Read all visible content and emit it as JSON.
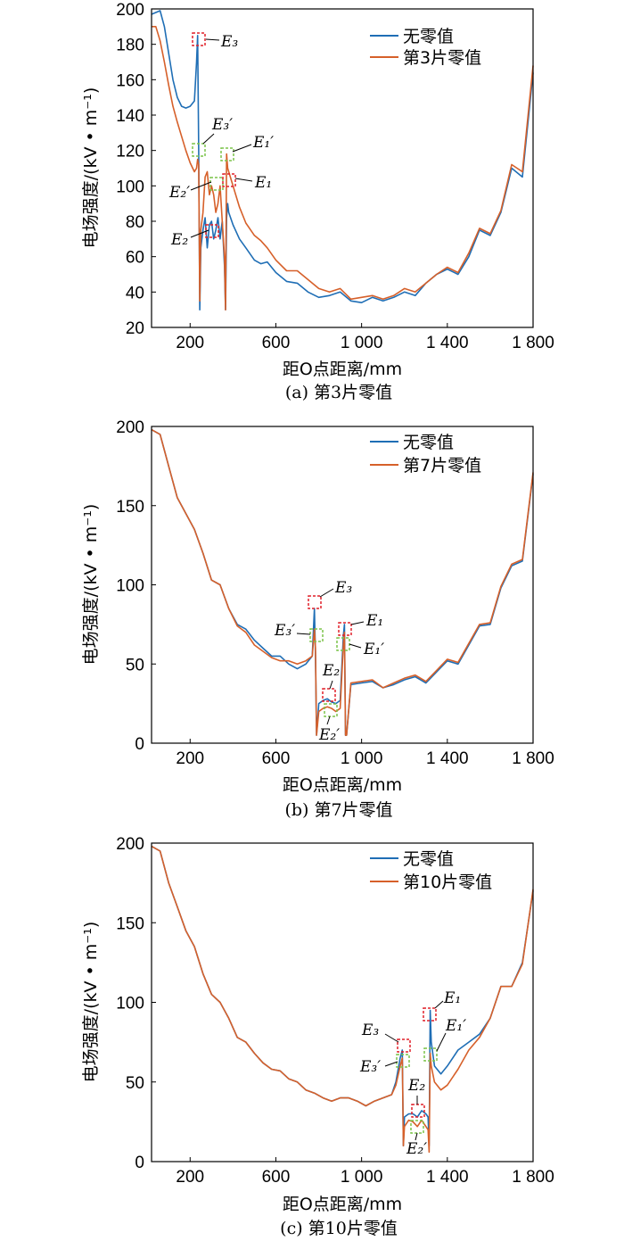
{
  "colors": {
    "no_zero": "#1f6eb5",
    "zero": "#d6602a",
    "box_red": "#e0202a",
    "box_green": "#7cc44a"
  },
  "chart_data": [
    {
      "type": "line",
      "caption": "(a)  第3片零值",
      "xlabel": "距O点距离/mm",
      "ylabel": "电场强度/(kV • m⁻¹)",
      "xlim": [
        20,
        1800
      ],
      "ylim": [
        20,
        200
      ],
      "xticks": [
        200,
        600,
        1000,
        1400,
        1800
      ],
      "xtick_labels": [
        "200",
        "600",
        "1 000",
        "1 400",
        "1 800"
      ],
      "yticks": [
        20,
        40,
        60,
        80,
        100,
        120,
        140,
        160,
        180,
        200
      ],
      "ytick_labels": [
        "20",
        "40",
        "60",
        "80",
        "100",
        "120",
        "140",
        "160",
        "180",
        "200"
      ],
      "legend": [
        "无零值",
        "第3片零值"
      ],
      "legend_position": "top-right",
      "series": [
        {
          "name": "无零值",
          "x": [
            20,
            60,
            80,
            100,
            120,
            140,
            160,
            180,
            200,
            220,
            230,
            235,
            240,
            245,
            250,
            260,
            270,
            280,
            290,
            300,
            310,
            320,
            330,
            340,
            350,
            360,
            365,
            370,
            375,
            380,
            400,
            430,
            460,
            500,
            530,
            560,
            600,
            650,
            700,
            750,
            800,
            850,
            900,
            950,
            1000,
            1050,
            1100,
            1150,
            1200,
            1250,
            1300,
            1350,
            1400,
            1450,
            1500,
            1550,
            1600,
            1650,
            1700,
            1750,
            1800
          ],
          "y": [
            197,
            199,
            190,
            175,
            160,
            150,
            145,
            144,
            145,
            148,
            170,
            185,
            120,
            30,
            65,
            75,
            82,
            65,
            78,
            80,
            70,
            75,
            82,
            70,
            80,
            55,
            30,
            82,
            90,
            85,
            78,
            70,
            65,
            58,
            56,
            57,
            51,
            46,
            45,
            40,
            37,
            38,
            40,
            35,
            34,
            37,
            35,
            37,
            40,
            38,
            45,
            50,
            53,
            50,
            60,
            75,
            72,
            85,
            110,
            105,
            164
          ]
        },
        {
          "name": "第3片零值",
          "x": [
            20,
            40,
            60,
            80,
            100,
            120,
            140,
            160,
            180,
            200,
            220,
            230,
            235,
            240,
            245,
            250,
            260,
            270,
            280,
            290,
            300,
            310,
            320,
            330,
            340,
            350,
            360,
            365,
            370,
            375,
            380,
            400,
            430,
            460,
            500,
            530,
            560,
            600,
            650,
            700,
            750,
            800,
            850,
            900,
            950,
            1000,
            1050,
            1100,
            1150,
            1200,
            1250,
            1300,
            1350,
            1400,
            1450,
            1500,
            1550,
            1600,
            1650,
            1700,
            1750,
            1800
          ],
          "y": [
            190,
            190,
            182,
            170,
            157,
            145,
            136,
            128,
            120,
            113,
            108,
            110,
            115,
            112,
            35,
            75,
            85,
            105,
            108,
            95,
            100,
            95,
            85,
            90,
            100,
            80,
            60,
            30,
            118,
            110,
            108,
            100,
            88,
            79,
            72,
            69,
            65,
            58,
            52,
            52,
            47,
            42,
            40,
            42,
            36,
            37,
            38,
            36,
            38,
            42,
            40,
            45,
            50,
            54,
            51,
            62,
            76,
            73,
            86,
            112,
            108,
            168
          ]
        }
      ],
      "annotations": [
        "E₃",
        "E₃′",
        "E₁′",
        "E₂′",
        "E₁",
        "E₂"
      ]
    },
    {
      "type": "line",
      "caption": "(b)  第7片零值",
      "xlabel": "距O点距离/mm",
      "ylabel": "电场强度/(kV • m⁻¹)",
      "xlim": [
        20,
        1800
      ],
      "ylim": [
        0,
        200
      ],
      "xticks": [
        200,
        600,
        1000,
        1400,
        1800
      ],
      "xtick_labels": [
        "200",
        "600",
        "1 000",
        "1 400",
        "1 800"
      ],
      "yticks": [
        0,
        50,
        100,
        150,
        200
      ],
      "ytick_labels": [
        "0",
        "50",
        "100",
        "150",
        "200"
      ],
      "legend": [
        "无零值",
        "第7片零值"
      ],
      "legend_position": "top-right",
      "series": [
        {
          "name": "无零值",
          "x": [
            20,
            60,
            100,
            140,
            180,
            220,
            260,
            300,
            340,
            380,
            420,
            460,
            500,
            540,
            580,
            620,
            660,
            700,
            740,
            770,
            780,
            785,
            790,
            800,
            820,
            840,
            860,
            880,
            900,
            915,
            920,
            925,
            930,
            950,
            1000,
            1050,
            1100,
            1150,
            1200,
            1250,
            1300,
            1350,
            1400,
            1450,
            1500,
            1550,
            1600,
            1650,
            1700,
            1750,
            1800
          ],
          "y": [
            198,
            195,
            175,
            155,
            145,
            135,
            120,
            103,
            100,
            85,
            75,
            72,
            65,
            60,
            55,
            55,
            50,
            47,
            50,
            55,
            85,
            55,
            5,
            25,
            27,
            28,
            26,
            25,
            27,
            68,
            75,
            5,
            5,
            37,
            38,
            39,
            35,
            37,
            40,
            42,
            38,
            45,
            52,
            50,
            62,
            74,
            75,
            98,
            112,
            115,
            170
          ]
        },
        {
          "name": "第7片零值",
          "x": [
            20,
            60,
            100,
            140,
            180,
            220,
            260,
            300,
            340,
            380,
            420,
            460,
            500,
            540,
            580,
            620,
            660,
            700,
            740,
            770,
            780,
            785,
            790,
            800,
            820,
            840,
            860,
            880,
            900,
            915,
            920,
            925,
            930,
            950,
            1000,
            1050,
            1100,
            1150,
            1200,
            1250,
            1300,
            1350,
            1400,
            1450,
            1500,
            1550,
            1600,
            1650,
            1700,
            1750,
            1800
          ],
          "y": [
            198,
            195,
            175,
            155,
            145,
            135,
            120,
            103,
            100,
            85,
            74,
            70,
            62,
            58,
            54,
            52,
            52,
            50,
            52,
            55,
            72,
            60,
            5,
            20,
            22,
            23,
            22,
            20,
            22,
            62,
            70,
            5,
            5,
            38,
            39,
            40,
            35,
            38,
            41,
            43,
            39,
            46,
            53,
            51,
            63,
            75,
            76,
            99,
            113,
            116,
            171
          ]
        }
      ],
      "annotations": [
        "E₃",
        "E₃′",
        "E₁",
        "E₁′",
        "E₂",
        "E₂′"
      ]
    },
    {
      "type": "line",
      "caption": "(c)  第10片零值",
      "xlabel": "距O点距离/mm",
      "ylabel": "电场强度/(kV • m⁻¹)",
      "xlim": [
        20,
        1800
      ],
      "ylim": [
        0,
        200
      ],
      "xticks": [
        200,
        600,
        1000,
        1400,
        1800
      ],
      "xtick_labels": [
        "200",
        "600",
        "1 000",
        "1 400",
        "1 800"
      ],
      "yticks": [
        0,
        50,
        100,
        150,
        200
      ],
      "ytick_labels": [
        "0",
        "50",
        "100",
        "150",
        "200"
      ],
      "legend": [
        "无零值",
        "第10片零值"
      ],
      "legend_position": "top-right",
      "series": [
        {
          "name": "无零值",
          "x": [
            20,
            60,
            100,
            140,
            180,
            220,
            260,
            300,
            340,
            380,
            420,
            460,
            500,
            540,
            580,
            620,
            660,
            700,
            740,
            780,
            820,
            860,
            900,
            940,
            980,
            1020,
            1060,
            1100,
            1140,
            1160,
            1180,
            1190,
            1195,
            1200,
            1220,
            1240,
            1260,
            1280,
            1300,
            1310,
            1315,
            1320,
            1325,
            1340,
            1370,
            1400,
            1450,
            1500,
            1550,
            1600,
            1650,
            1700,
            1750,
            1800
          ],
          "y": [
            198,
            195,
            175,
            160,
            145,
            135,
            118,
            105,
            100,
            90,
            78,
            75,
            68,
            62,
            58,
            57,
            52,
            50,
            45,
            43,
            40,
            38,
            40,
            40,
            38,
            35,
            38,
            40,
            42,
            50,
            65,
            70,
            10,
            28,
            30,
            30,
            28,
            32,
            30,
            28,
            10,
            95,
            75,
            60,
            55,
            60,
            70,
            75,
            80,
            90,
            110,
            110,
            125,
            170
          ]
        },
        {
          "name": "第10片零值",
          "x": [
            20,
            60,
            100,
            140,
            180,
            220,
            260,
            300,
            340,
            380,
            420,
            460,
            500,
            540,
            580,
            620,
            660,
            700,
            740,
            780,
            820,
            860,
            900,
            940,
            980,
            1020,
            1060,
            1100,
            1140,
            1160,
            1180,
            1190,
            1195,
            1200,
            1220,
            1240,
            1260,
            1280,
            1300,
            1310,
            1315,
            1320,
            1325,
            1340,
            1370,
            1400,
            1450,
            1500,
            1550,
            1600,
            1650,
            1700,
            1750,
            1800
          ],
          "y": [
            198,
            195,
            175,
            160,
            145,
            135,
            118,
            105,
            100,
            90,
            78,
            75,
            68,
            62,
            58,
            57,
            52,
            50,
            45,
            43,
            40,
            38,
            40,
            40,
            38,
            35,
            38,
            40,
            42,
            48,
            60,
            65,
            10,
            22,
            26,
            25,
            22,
            26,
            22,
            20,
            6,
            68,
            60,
            50,
            45,
            48,
            58,
            70,
            78,
            90,
            110,
            110,
            124,
            171
          ]
        }
      ],
      "annotations": [
        "E₁",
        "E₁′",
        "E₃",
        "E₃′",
        "E₂",
        "E₂′"
      ]
    }
  ]
}
